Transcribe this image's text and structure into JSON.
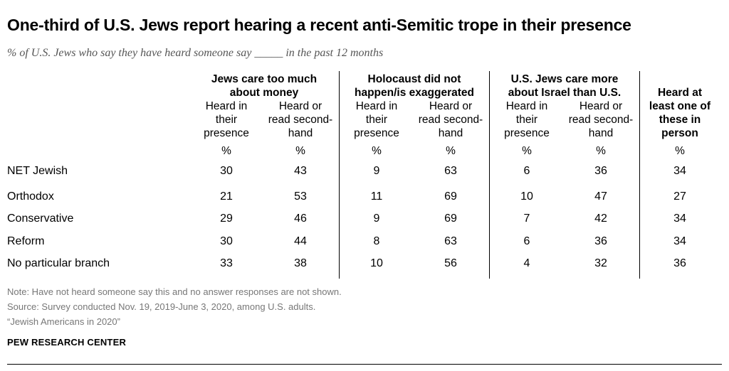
{
  "chart_data": {
    "type": "table",
    "title": "One-third of U.S. Jews report hearing a recent anti-Semitic trope in their presence",
    "subtitle": "% of U.S. Jews who say they have heard someone say _____ in the past 12 months",
    "groups": [
      {
        "label": "Jews care too much about money",
        "line1": "Jews care too much",
        "line2": "about money"
      },
      {
        "label": "Holocaust did not happen/is exaggerated",
        "line1": "Holocaust did not",
        "line2": "happen/is exaggerated"
      },
      {
        "label": "U.S. Jews care more about Israel than U.S.",
        "line1": "U.S. Jews care more",
        "line2": "about Israel than U.S."
      }
    ],
    "subcolumns": [
      {
        "line1": "Heard in",
        "line2": "their",
        "line3": "presence"
      },
      {
        "line1": "Heard or",
        "line2": "read second-",
        "line3": "hand"
      }
    ],
    "last_column": {
      "line1": "Heard at",
      "line2": "least one of",
      "line3": "these in",
      "line4": "person"
    },
    "unit": "%",
    "rows": [
      {
        "label": "NET Jewish",
        "values": [
          30,
          43,
          9,
          63,
          6,
          36,
          34
        ]
      },
      {
        "label": "Orthodox",
        "values": [
          21,
          53,
          11,
          69,
          10,
          47,
          27
        ]
      },
      {
        "label": "Conservative",
        "values": [
          29,
          46,
          9,
          69,
          7,
          42,
          34
        ]
      },
      {
        "label": "Reform",
        "values": [
          30,
          44,
          8,
          63,
          6,
          36,
          34
        ]
      },
      {
        "label": "No particular branch",
        "values": [
          33,
          38,
          10,
          56,
          4,
          32,
          36
        ]
      }
    ]
  },
  "notes": {
    "note": "Note: Have not heard someone say this and no answer responses are not shown.",
    "source": "Source: Survey conducted Nov. 19, 2019-June 3, 2020, among U.S. adults.",
    "report": "“Jewish Americans in 2020”"
  },
  "brand": "PEW RESEARCH CENTER"
}
